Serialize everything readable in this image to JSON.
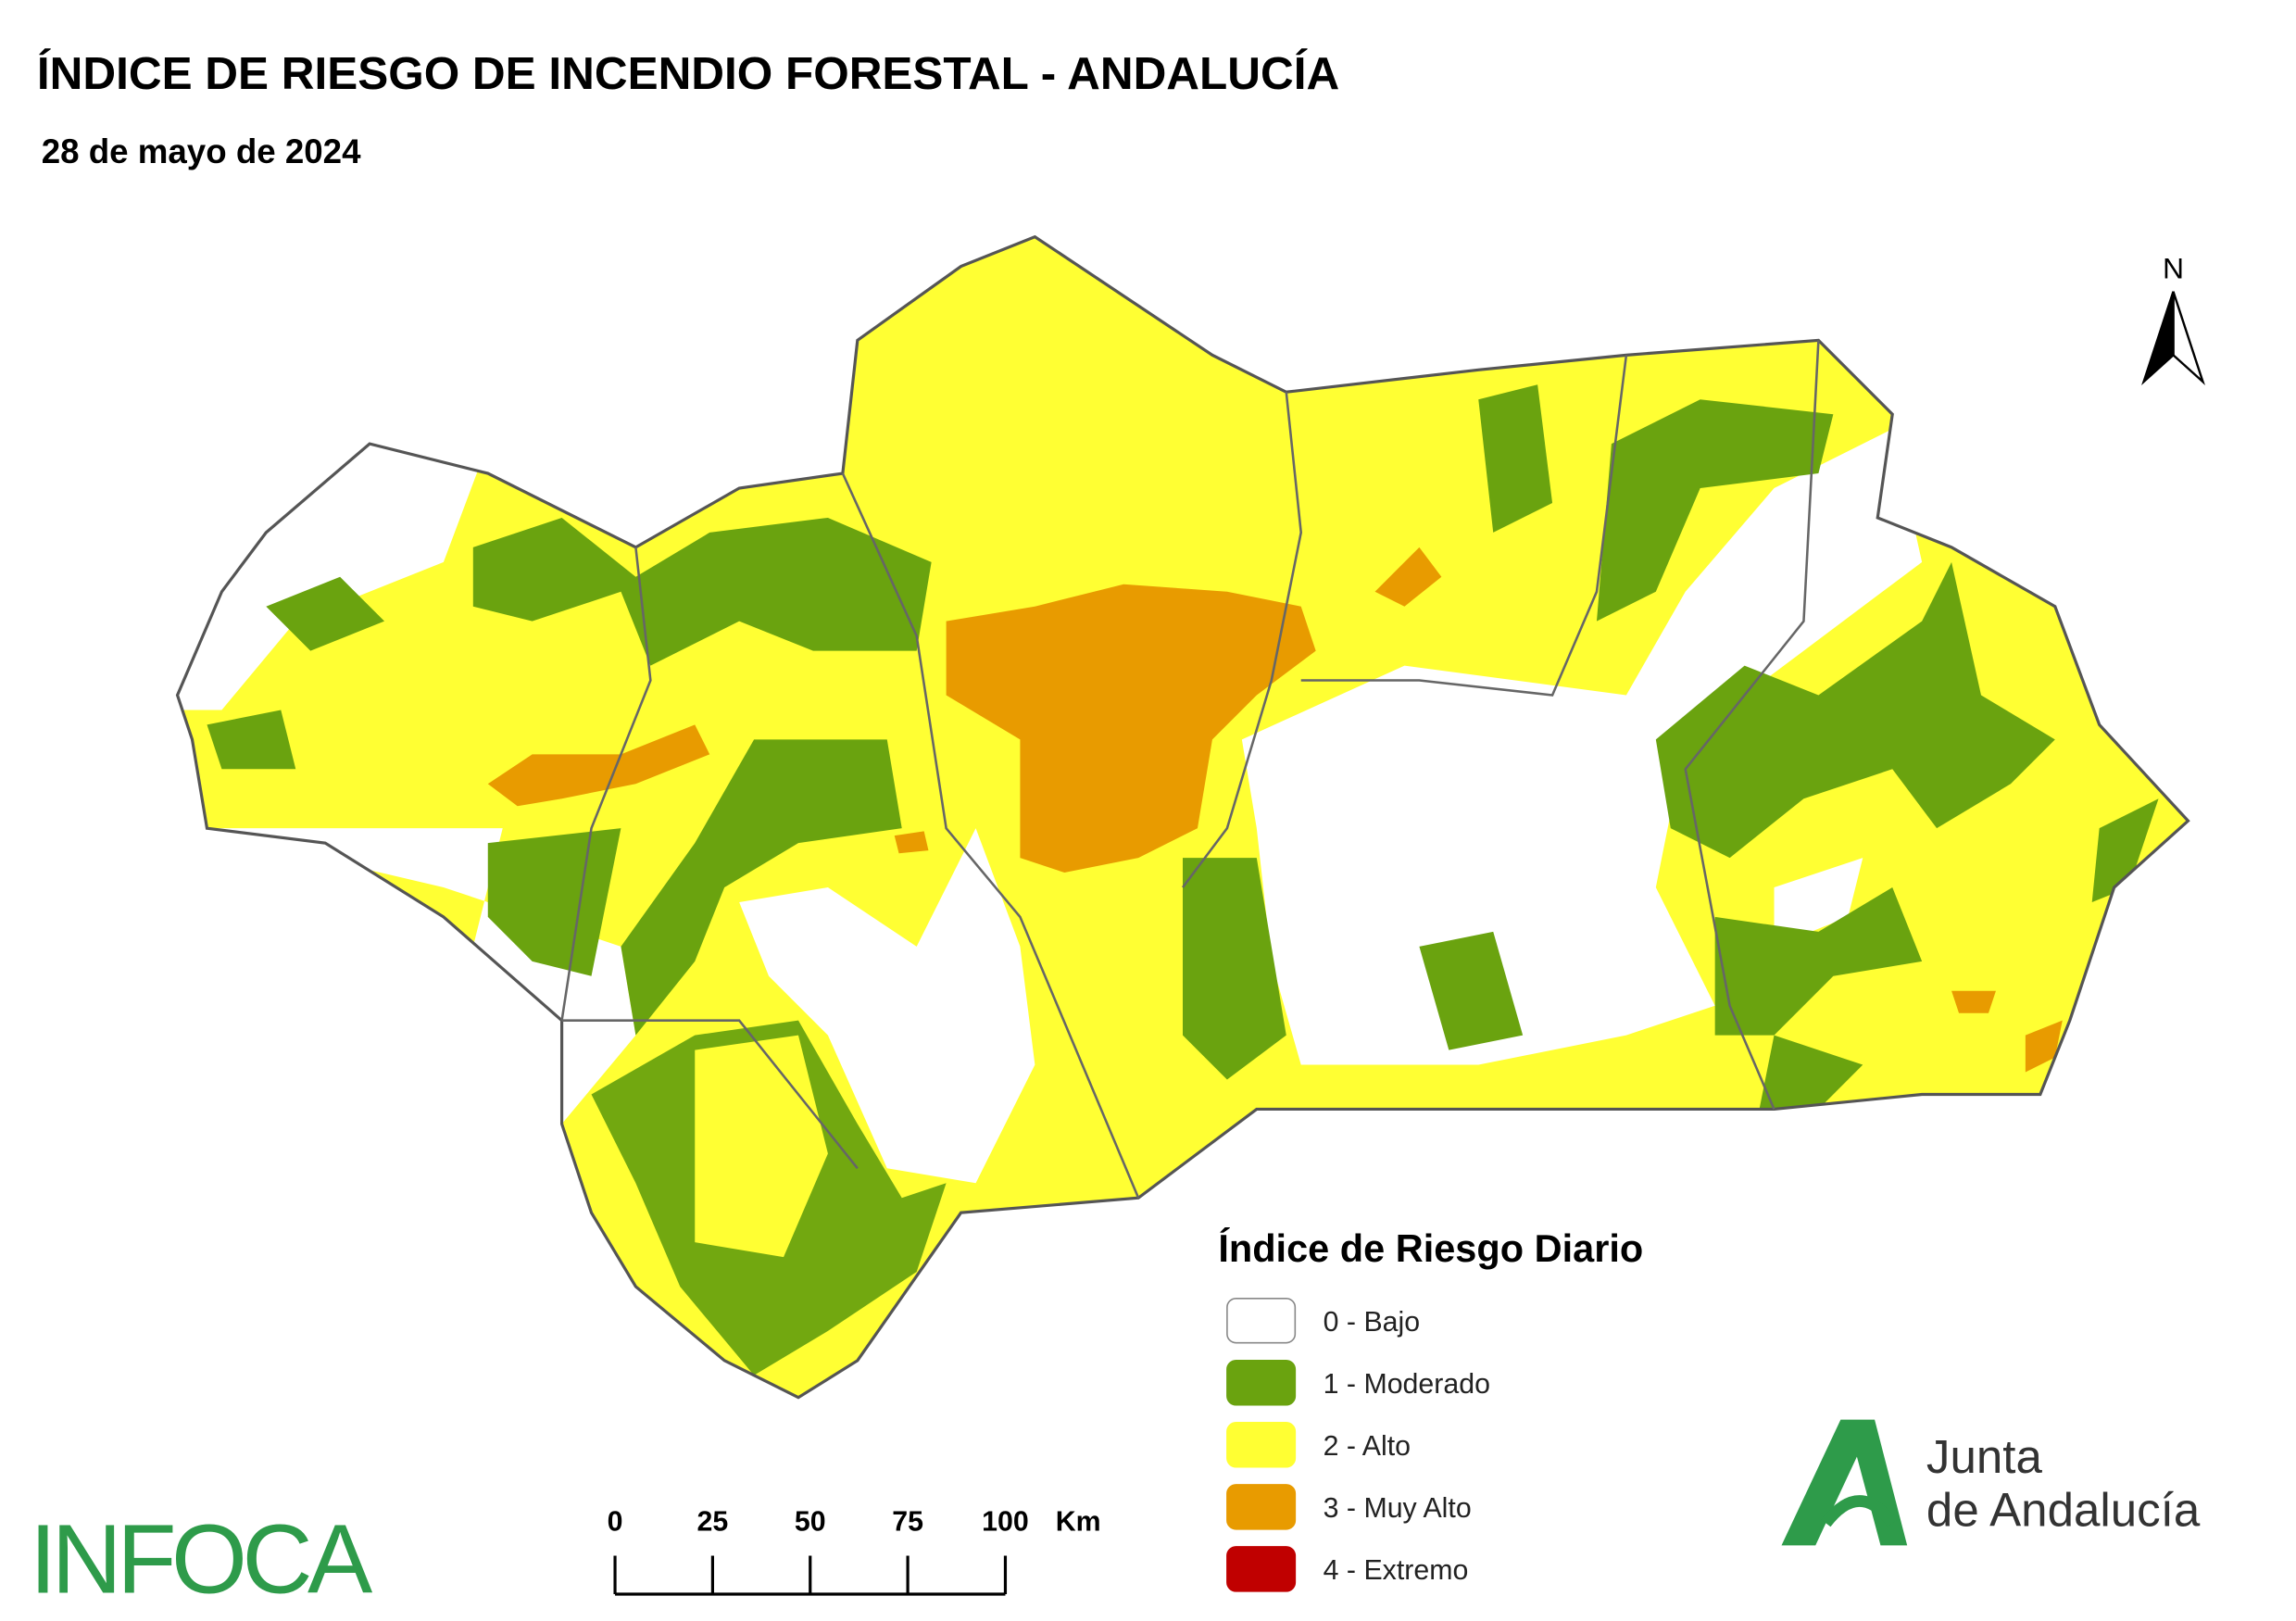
{
  "header": {
    "title": "ÍNDICE DE RIESGO DE INCENDIO FORESTAL - ANDALUCÍA",
    "subtitle": "28 de mayo de 2024"
  },
  "north": "N",
  "legend": {
    "title": "Índice de Riesgo Diario",
    "items": [
      {
        "label": "0 - Bajo",
        "color": "#ffffff"
      },
      {
        "label": "1 - Moderado",
        "color": "#6aa30f"
      },
      {
        "label": "2 - Alto",
        "color": "#ffff33"
      },
      {
        "label": "3 - Muy Alto",
        "color": "#e89b00"
      },
      {
        "label": "4 - Extremo",
        "color": "#c00000"
      }
    ]
  },
  "scale_bar": {
    "ticks": [
      0,
      25,
      50,
      75,
      100
    ],
    "unit": "Km"
  },
  "logos": {
    "infoca": "INFOCA",
    "junta_line1": "Junta",
    "junta_line2": "de Andalucía"
  }
}
